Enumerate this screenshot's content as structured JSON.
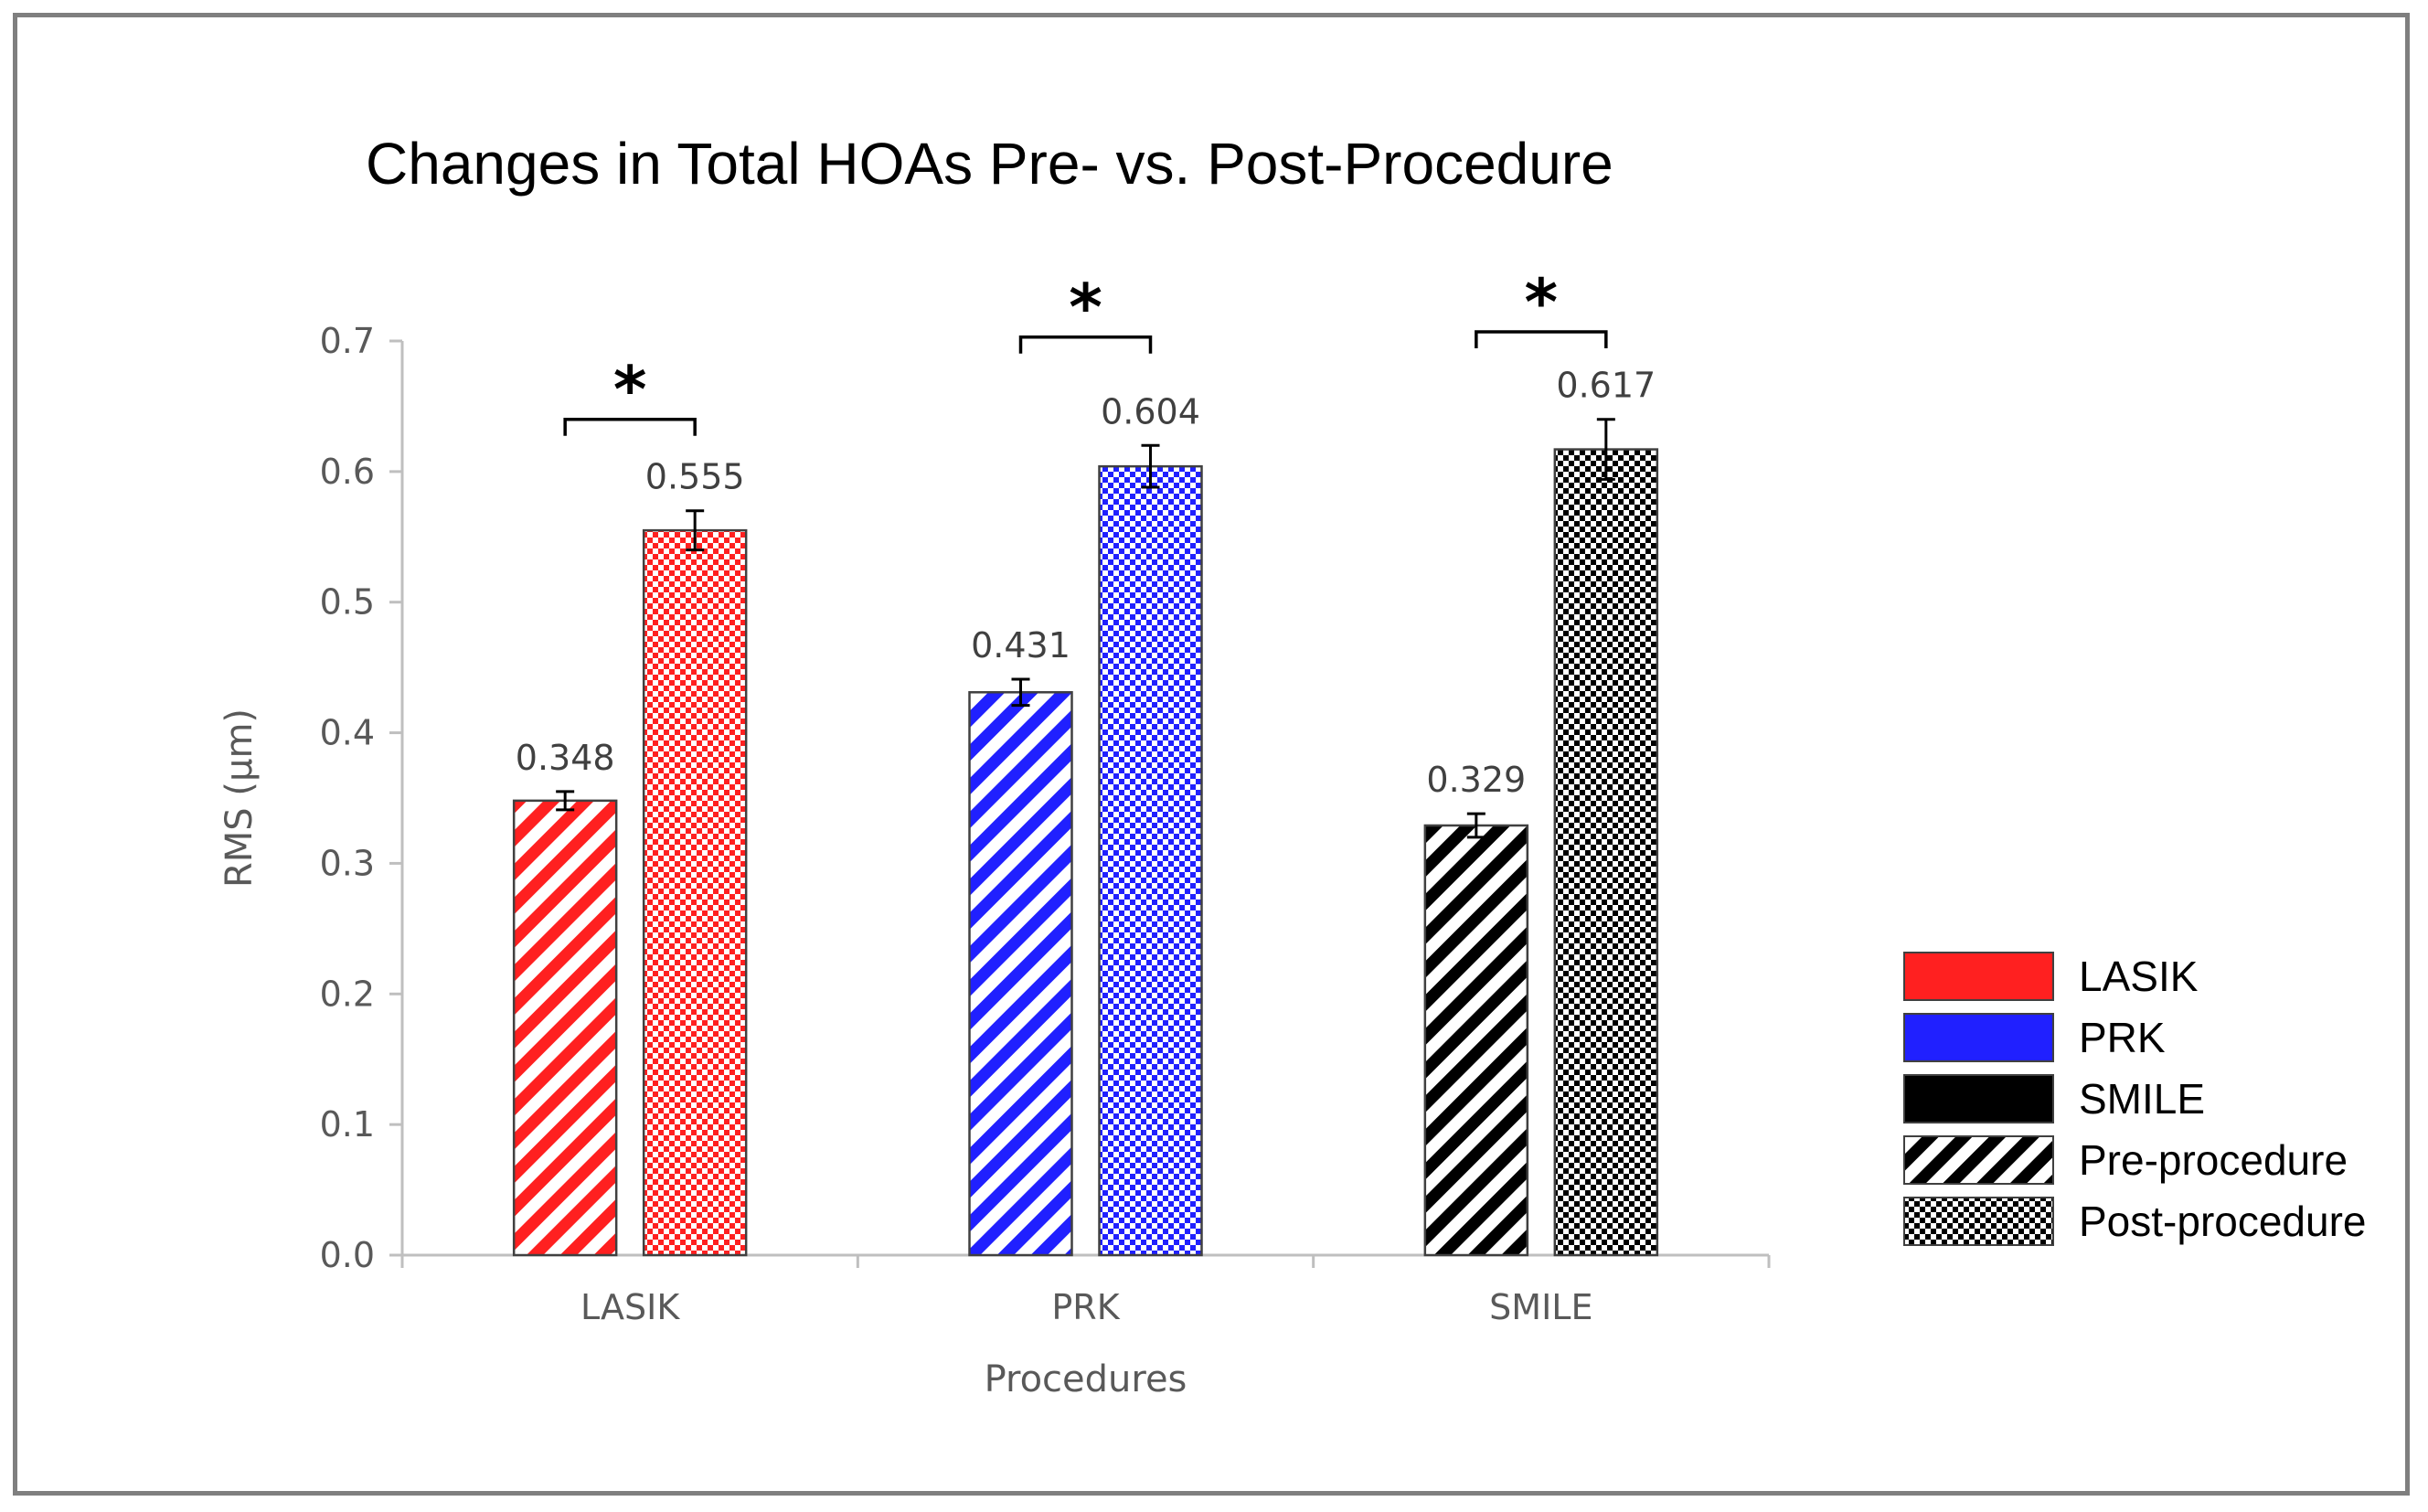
{
  "chart_data": {
    "type": "bar",
    "title": "Changes in Total HOAs Pre- vs. Post-Procedure",
    "xlabel": "Procedures",
    "ylabel": "RMS (µm)",
    "ylim": [
      0,
      0.7
    ],
    "yticks": [
      "0.0",
      "0.1",
      "0.2",
      "0.3",
      "0.4",
      "0.5",
      "0.6",
      "0.7"
    ],
    "categories": [
      "LASIK",
      "PRK",
      "SMILE"
    ],
    "category_colors": [
      "#ff2020",
      "#2020ff",
      "#000000"
    ],
    "series": [
      {
        "name": "Pre-procedure",
        "pattern": "diagonal-stripes",
        "values": [
          0.348,
          0.431,
          0.329
        ],
        "labels": [
          "0.348",
          "0.431",
          "0.329"
        ],
        "error": [
          0.007,
          0.01,
          0.009
        ]
      },
      {
        "name": "Post-procedure",
        "pattern": "checkerboard",
        "values": [
          0.555,
          0.604,
          0.617
        ],
        "labels": [
          "0.555",
          "0.604",
          "0.617"
        ],
        "error": [
          0.015,
          0.016,
          0.023
        ]
      }
    ],
    "significance": [
      {
        "category": "LASIK",
        "marker": "*",
        "bracket_y": 0.64
      },
      {
        "category": "PRK",
        "marker": "*",
        "bracket_y": 0.703
      },
      {
        "category": "SMILE",
        "marker": "*",
        "bracket_y": 0.707
      }
    ],
    "legend": {
      "position": "bottom-right",
      "items": [
        {
          "label": "LASIK",
          "swatch": "solid",
          "color": "#ff2020"
        },
        {
          "label": "PRK",
          "swatch": "solid",
          "color": "#2020ff"
        },
        {
          "label": "SMILE",
          "swatch": "solid",
          "color": "#000000"
        },
        {
          "label": "Pre-procedure",
          "swatch": "diagonal-stripes",
          "color": "#000000"
        },
        {
          "label": "Post-procedure",
          "swatch": "checkerboard",
          "color": "#000000"
        }
      ]
    },
    "grid": false
  }
}
